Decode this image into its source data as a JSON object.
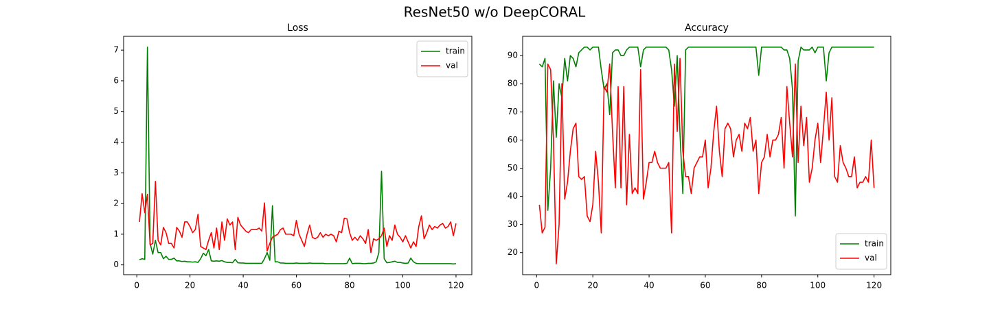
{
  "figure_title": "ResNet50 w/o DeepCORAL",
  "chart_data": [
    {
      "type": "line",
      "title": "Loss",
      "x": [
        1,
        2,
        3,
        4,
        5,
        6,
        7,
        8,
        9,
        10,
        11,
        12,
        13,
        14,
        15,
        16,
        17,
        18,
        19,
        20,
        21,
        22,
        23,
        24,
        25,
        26,
        27,
        28,
        29,
        30,
        31,
        32,
        33,
        34,
        35,
        36,
        37,
        38,
        39,
        40,
        41,
        42,
        43,
        44,
        45,
        46,
        47,
        48,
        49,
        50,
        51,
        52,
        53,
        54,
        55,
        56,
        57,
        58,
        59,
        60,
        61,
        62,
        63,
        64,
        65,
        66,
        67,
        68,
        69,
        70,
        71,
        72,
        73,
        74,
        75,
        76,
        77,
        78,
        79,
        80,
        81,
        82,
        83,
        84,
        85,
        86,
        87,
        88,
        89,
        90,
        91,
        92,
        93,
        94,
        95,
        96,
        97,
        98,
        99,
        100,
        101,
        102,
        103,
        104,
        105,
        106,
        107,
        108,
        109,
        110,
        111,
        112,
        113,
        114,
        115,
        116,
        117,
        118,
        119,
        120
      ],
      "series": [
        {
          "name": "train",
          "color": "#008000",
          "values": [
            0.17,
            0.2,
            0.18,
            7.1,
            0.7,
            0.35,
            0.8,
            0.4,
            0.4,
            0.2,
            0.28,
            0.18,
            0.18,
            0.22,
            0.13,
            0.13,
            0.11,
            0.12,
            0.1,
            0.1,
            0.09,
            0.1,
            0.08,
            0.2,
            0.38,
            0.3,
            0.5,
            0.13,
            0.12,
            0.13,
            0.12,
            0.14,
            0.1,
            0.08,
            0.08,
            0.07,
            0.18,
            0.07,
            0.06,
            0.06,
            0.05,
            0.05,
            0.05,
            0.05,
            0.05,
            0.05,
            0.05,
            0.2,
            0.4,
            0.15,
            1.93,
            0.1,
            0.1,
            0.06,
            0.06,
            0.05,
            0.05,
            0.05,
            0.05,
            0.06,
            0.05,
            0.05,
            0.05,
            0.05,
            0.06,
            0.05,
            0.05,
            0.05,
            0.05,
            0.05,
            0.04,
            0.04,
            0.04,
            0.04,
            0.04,
            0.04,
            0.04,
            0.04,
            0.05,
            0.22,
            0.04,
            0.05,
            0.05,
            0.05,
            0.04,
            0.04,
            0.05,
            0.05,
            0.06,
            0.1,
            0.4,
            3.05,
            0.2,
            0.07,
            0.08,
            0.1,
            0.12,
            0.08,
            0.08,
            0.06,
            0.05,
            0.06,
            0.22,
            0.1,
            0.05,
            0.04,
            0.04,
            0.04,
            0.04,
            0.04,
            0.04,
            0.04,
            0.04,
            0.04,
            0.04,
            0.04,
            0.04,
            0.04,
            0.03,
            0.04
          ]
        },
        {
          "name": "val",
          "color": "#ff0000",
          "values": [
            1.4,
            2.32,
            1.7,
            2.3,
            0.65,
            0.7,
            2.72,
            0.8,
            0.65,
            1.22,
            1.05,
            0.7,
            0.7,
            0.55,
            1.22,
            1.1,
            0.9,
            1.4,
            1.4,
            1.25,
            1.05,
            1.15,
            1.65,
            0.6,
            0.55,
            0.5,
            0.8,
            1.05,
            0.55,
            1.2,
            0.5,
            1.4,
            0.8,
            1.5,
            1.3,
            1.4,
            0.5,
            1.55,
            1.3,
            1.2,
            1.1,
            1.05,
            1.15,
            1.15,
            1.15,
            1.2,
            1.1,
            2.02,
            0.45,
            0.7,
            0.9,
            0.95,
            1.0,
            1.15,
            1.2,
            1.0,
            1.0,
            1.0,
            0.95,
            1.45,
            1.0,
            0.8,
            0.6,
            1.0,
            1.3,
            0.9,
            0.85,
            0.9,
            1.05,
            0.9,
            1.0,
            0.95,
            1.0,
            0.95,
            0.75,
            1.1,
            1.05,
            1.52,
            1.5,
            1.05,
            0.8,
            0.9,
            0.8,
            0.95,
            0.85,
            0.7,
            1.15,
            0.4,
            0.85,
            0.8,
            0.85,
            0.95,
            1.2,
            0.6,
            0.95,
            0.8,
            1.3,
            1.0,
            0.9,
            0.75,
            0.95,
            0.75,
            0.55,
            0.75,
            0.6,
            1.25,
            1.6,
            0.85,
            1.05,
            1.3,
            1.15,
            1.25,
            1.2,
            1.3,
            1.35,
            1.2,
            1.25,
            1.4,
            0.95,
            1.35
          ]
        }
      ],
      "xlim": [
        -4.95,
        125.95
      ],
      "xticks": [
        0,
        20,
        40,
        60,
        80,
        100,
        120
      ],
      "ylim": [
        -0.32,
        7.45
      ],
      "yticks": [
        0,
        1,
        2,
        3,
        4,
        5,
        6,
        7
      ],
      "legend": "upper right"
    },
    {
      "type": "line",
      "title": "Accuracy",
      "x": [
        1,
        2,
        3,
        4,
        5,
        6,
        7,
        8,
        9,
        10,
        11,
        12,
        13,
        14,
        15,
        16,
        17,
        18,
        19,
        20,
        21,
        22,
        23,
        24,
        25,
        26,
        27,
        28,
        29,
        30,
        31,
        32,
        33,
        34,
        35,
        36,
        37,
        38,
        39,
        40,
        41,
        42,
        43,
        44,
        45,
        46,
        47,
        48,
        49,
        50,
        51,
        52,
        53,
        54,
        55,
        56,
        57,
        58,
        59,
        60,
        61,
        62,
        63,
        64,
        65,
        66,
        67,
        68,
        69,
        70,
        71,
        72,
        73,
        74,
        75,
        76,
        77,
        78,
        79,
        80,
        81,
        82,
        83,
        84,
        85,
        86,
        87,
        88,
        89,
        90,
        91,
        92,
        93,
        94,
        95,
        96,
        97,
        98,
        99,
        100,
        101,
        102,
        103,
        104,
        105,
        106,
        107,
        108,
        109,
        110,
        111,
        112,
        113,
        114,
        115,
        116,
        117,
        118,
        119,
        120
      ],
      "series": [
        {
          "name": "train",
          "color": "#008000",
          "values": [
            87,
            86,
            89,
            35,
            50,
            81,
            61,
            80,
            75,
            89,
            81,
            90,
            89,
            86,
            91,
            92,
            93,
            93,
            92,
            93,
            93,
            93,
            85,
            78,
            80,
            69,
            91,
            92,
            92,
            90,
            90,
            92,
            93,
            93,
            93,
            93,
            86,
            92,
            93,
            93,
            93,
            93,
            93,
            93,
            93,
            93,
            92,
            85,
            72,
            90,
            62,
            41,
            92,
            93,
            93,
            93,
            93,
            93,
            93,
            93,
            93,
            93,
            93,
            93,
            93,
            93,
            93,
            93,
            93,
            93,
            93,
            93,
            93,
            93,
            93,
            93,
            93,
            93,
            83,
            93,
            93,
            93,
            93,
            93,
            93,
            93,
            93,
            92,
            92,
            89,
            78,
            33,
            88,
            93,
            92,
            92,
            92,
            93,
            91,
            93,
            93,
            93,
            81,
            91,
            93,
            93,
            93,
            93,
            93,
            93,
            93,
            93,
            93,
            93,
            93,
            93,
            93,
            93,
            93,
            93
          ]
        },
        {
          "name": "val",
          "color": "#ff0000",
          "values": [
            37,
            27,
            29,
            87,
            85,
            60,
            16,
            30,
            80,
            39,
            45,
            56,
            64,
            66,
            47,
            46,
            47,
            33,
            31,
            37,
            56,
            45,
            27,
            79,
            77,
            87,
            63,
            43,
            79,
            43,
            79,
            37,
            62,
            41,
            43,
            41,
            85,
            39,
            45,
            52,
            52,
            56,
            52,
            50,
            50,
            50,
            52,
            27,
            87,
            63,
            89,
            56,
            47,
            47,
            41,
            50,
            52,
            54,
            54,
            60,
            43,
            50,
            63,
            72,
            56,
            47,
            64,
            66,
            64,
            54,
            60,
            62,
            56,
            66,
            64,
            68,
            56,
            60,
            41,
            52,
            54,
            62,
            54,
            60,
            60,
            62,
            68,
            50,
            79,
            66,
            54,
            87,
            52,
            72,
            58,
            68,
            45,
            50,
            60,
            66,
            52,
            64,
            77,
            60,
            75,
            47,
            45,
            58,
            52,
            50,
            47,
            47,
            54,
            43,
            45,
            45,
            47,
            45,
            60,
            43
          ]
        }
      ],
      "xlim": [
        -4.95,
        125.95
      ],
      "xticks": [
        0,
        20,
        40,
        60,
        80,
        100,
        120
      ],
      "ylim": [
        12.15,
        96.85
      ],
      "yticks": [
        20,
        30,
        40,
        50,
        60,
        70,
        80,
        90
      ],
      "legend": "lower right"
    }
  ]
}
